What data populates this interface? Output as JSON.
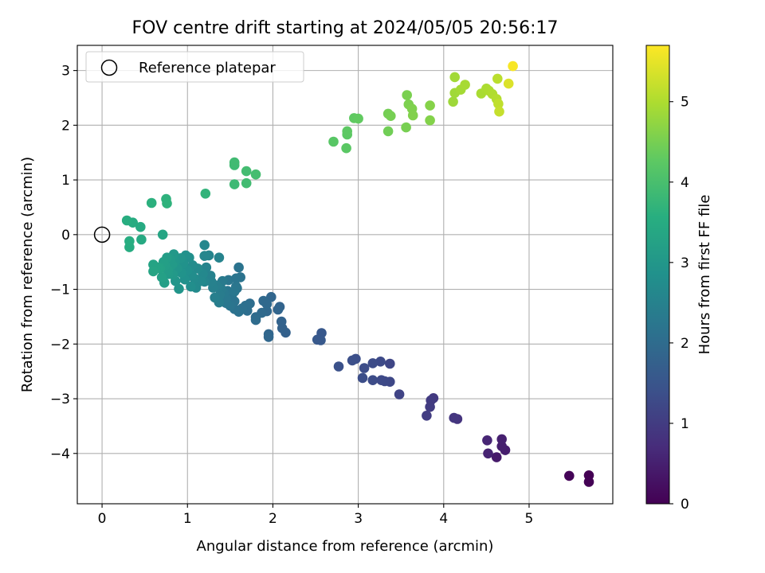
{
  "chart_data": {
    "type": "scatter",
    "title": "FOV centre drift starting at 2024/05/05 20:56:17",
    "xlabel": "Angular distance from reference (arcmin)",
    "ylabel": "Rotation from reference (arcmin)",
    "xlim": [
      -0.29,
      5.98
    ],
    "ylim": [
      -4.92,
      3.46
    ],
    "xticks": [
      0,
      1,
      2,
      3,
      4,
      5
    ],
    "yticks": [
      -4,
      -3,
      -2,
      -1,
      0,
      1,
      2,
      3
    ],
    "grid": true,
    "legend": {
      "position": "top-left",
      "entries": [
        "Reference platepar"
      ]
    },
    "reference_point": {
      "name": "Reference platepar",
      "x": 0,
      "y": 0
    },
    "colorbar": {
      "label": "Hours from first FF file",
      "range": [
        0,
        5.7
      ],
      "ticks": [
        0,
        1,
        2,
        3,
        4,
        5
      ],
      "colormap": "viridis"
    },
    "points": [
      [
        5.7,
        -4.4,
        0.0
      ],
      [
        5.7,
        -4.52,
        0.02
      ],
      [
        5.47,
        -4.41,
        0.05
      ],
      [
        4.62,
        -4.07,
        0.4
      ],
      [
        4.72,
        -3.94,
        0.45
      ],
      [
        4.68,
        -3.87,
        0.48
      ],
      [
        4.68,
        -3.74,
        0.5
      ],
      [
        4.52,
        -4.0,
        0.55
      ],
      [
        4.51,
        -3.76,
        0.6
      ],
      [
        4.16,
        -3.37,
        0.85
      ],
      [
        4.12,
        -3.35,
        0.88
      ],
      [
        3.88,
        -2.99,
        0.95
      ],
      [
        3.85,
        -3.03,
        0.98
      ],
      [
        3.84,
        -3.15,
        1.0
      ],
      [
        3.8,
        -3.31,
        1.02
      ],
      [
        3.48,
        -2.92,
        1.15
      ],
      [
        3.37,
        -2.36,
        1.2
      ],
      [
        3.37,
        -2.69,
        1.22
      ],
      [
        3.31,
        -2.68,
        1.25
      ],
      [
        3.27,
        -2.66,
        1.27
      ],
      [
        3.26,
        -2.32,
        1.28
      ],
      [
        3.17,
        -2.66,
        1.3
      ],
      [
        3.17,
        -2.35,
        1.31
      ],
      [
        3.07,
        -2.44,
        1.33
      ],
      [
        3.05,
        -2.62,
        1.35
      ],
      [
        2.97,
        -2.27,
        1.37
      ],
      [
        2.93,
        -2.3,
        1.38
      ],
      [
        2.77,
        -2.41,
        1.4
      ],
      [
        2.57,
        -1.8,
        1.55
      ],
      [
        2.56,
        -1.93,
        1.57
      ],
      [
        2.52,
        -1.92,
        1.58
      ],
      [
        2.15,
        -1.79,
        1.75
      ],
      [
        2.11,
        -1.71,
        1.78
      ],
      [
        2.1,
        -1.59,
        1.8
      ],
      [
        2.08,
        -1.32,
        1.82
      ],
      [
        2.06,
        -1.37,
        1.84
      ],
      [
        1.98,
        -1.14,
        1.86
      ],
      [
        1.95,
        -1.82,
        1.88
      ],
      [
        1.95,
        -1.87,
        1.9
      ],
      [
        1.93,
        -1.4,
        1.92
      ],
      [
        1.93,
        -1.27,
        1.93
      ],
      [
        1.89,
        -1.21,
        1.94
      ],
      [
        1.87,
        -1.43,
        1.96
      ],
      [
        1.8,
        -1.51,
        1.98
      ],
      [
        1.8,
        -1.56,
        2.0
      ],
      [
        1.73,
        -1.26,
        2.02
      ],
      [
        1.7,
        -1.39,
        2.04
      ],
      [
        1.7,
        -1.3,
        2.06
      ],
      [
        1.68,
        -1.3,
        2.08
      ],
      [
        1.64,
        -1.35,
        2.1
      ],
      [
        1.6,
        -1.41,
        2.12
      ],
      [
        1.55,
        -1.36,
        2.14
      ],
      [
        1.55,
        -1.22,
        2.16
      ],
      [
        1.52,
        -1.1,
        2.18
      ],
      [
        1.5,
        -1.3,
        2.2
      ],
      [
        1.48,
        -0.83,
        2.22
      ],
      [
        1.47,
        -1.03,
        2.24
      ],
      [
        1.45,
        -1.25,
        2.26
      ],
      [
        1.45,
        -1.17,
        2.28
      ],
      [
        1.43,
        -1.07,
        2.3
      ],
      [
        1.41,
        -0.85,
        2.32
      ],
      [
        1.4,
        -1.0,
        2.34
      ],
      [
        1.38,
        -1.1,
        2.36
      ],
      [
        1.37,
        -1.24,
        2.38
      ],
      [
        1.36,
        -0.96,
        2.4
      ],
      [
        1.34,
        -0.93,
        2.42
      ],
      [
        1.32,
        -1.15,
        2.44
      ],
      [
        1.3,
        -0.97,
        2.46
      ],
      [
        1.28,
        -0.86,
        2.48
      ],
      [
        1.27,
        -0.75,
        2.5
      ],
      [
        1.62,
        -0.78,
        2.15
      ],
      [
        1.6,
        -0.6,
        2.17
      ],
      [
        1.58,
        -0.98,
        2.19
      ],
      [
        1.57,
        -0.8,
        2.21
      ],
      [
        1.57,
        -0.95,
        2.23
      ],
      [
        1.55,
        -1.04,
        2.25
      ],
      [
        1.37,
        -0.42,
        2.52
      ],
      [
        1.25,
        -0.38,
        2.54
      ],
      [
        1.22,
        -0.6,
        2.56
      ],
      [
        1.2,
        -0.86,
        2.58
      ],
      [
        1.2,
        -0.39,
        2.6
      ],
      [
        1.2,
        -0.19,
        2.62
      ],
      [
        1.18,
        -0.72,
        2.64
      ],
      [
        1.16,
        -0.85,
        2.66
      ],
      [
        1.12,
        -0.62,
        2.68
      ],
      [
        1.1,
        -0.97,
        2.7
      ],
      [
        1.08,
        -0.8,
        2.72
      ],
      [
        1.06,
        -0.56,
        2.74
      ],
      [
        1.05,
        -0.74,
        2.76
      ],
      [
        1.04,
        -0.95,
        2.78
      ],
      [
        1.02,
        -0.42,
        2.8
      ],
      [
        1.0,
        -0.65,
        2.82
      ],
      [
        0.98,
        -0.38,
        2.84
      ],
      [
        0.97,
        -0.82,
        2.86
      ],
      [
        0.95,
        -0.53,
        2.88
      ],
      [
        0.93,
        -0.7,
        2.9
      ],
      [
        0.92,
        -0.43,
        2.92
      ],
      [
        0.9,
        -0.99,
        2.94
      ],
      [
        0.88,
        -0.62,
        2.96
      ],
      [
        0.86,
        -0.85,
        2.98
      ],
      [
        0.85,
        -0.5,
        3.0
      ],
      [
        0.84,
        -0.36,
        3.02
      ],
      [
        0.83,
        -0.73,
        3.04
      ],
      [
        0.82,
        -0.55,
        3.06
      ],
      [
        0.8,
        -0.45,
        3.08
      ],
      [
        0.78,
        -0.72,
        3.1
      ],
      [
        0.77,
        -0.65,
        3.12
      ],
      [
        0.76,
        -0.42,
        3.14
      ],
      [
        0.74,
        -0.56,
        3.16
      ],
      [
        0.73,
        -0.88,
        3.18
      ],
      [
        0.72,
        -0.5,
        3.2
      ],
      [
        0.7,
        -0.78,
        3.22
      ],
      [
        0.68,
        -0.62,
        3.24
      ],
      [
        0.65,
        -0.6,
        3.26
      ],
      [
        0.63,
        -0.62,
        3.28
      ],
      [
        0.6,
        -0.55,
        3.3
      ],
      [
        0.6,
        -0.67,
        3.32
      ],
      [
        0.71,
        0.0,
        3.35
      ],
      [
        0.46,
        -0.09,
        3.45
      ],
      [
        0.45,
        0.14,
        3.47
      ],
      [
        0.36,
        0.22,
        3.49
      ],
      [
        0.32,
        -0.23,
        3.51
      ],
      [
        0.32,
        -0.12,
        3.53
      ],
      [
        0.29,
        0.26,
        3.55
      ],
      [
        0.58,
        0.58,
        3.62
      ],
      [
        0.75,
        0.65,
        3.64
      ],
      [
        0.76,
        0.57,
        3.66
      ],
      [
        1.21,
        0.75,
        3.7
      ],
      [
        1.55,
        0.92,
        3.85
      ],
      [
        1.55,
        1.27,
        3.87
      ],
      [
        1.55,
        1.32,
        3.89
      ],
      [
        1.69,
        0.94,
        3.91
      ],
      [
        1.69,
        1.16,
        3.93
      ],
      [
        1.8,
        1.1,
        3.95
      ],
      [
        2.71,
        1.7,
        4.2
      ],
      [
        2.86,
        1.58,
        4.22
      ],
      [
        2.87,
        1.83,
        4.24
      ],
      [
        2.87,
        1.89,
        4.26
      ],
      [
        2.95,
        2.13,
        4.28
      ],
      [
        3.0,
        2.12,
        4.3
      ],
      [
        3.35,
        1.89,
        4.45
      ],
      [
        3.35,
        2.21,
        4.47
      ],
      [
        3.38,
        2.17,
        4.49
      ],
      [
        3.56,
        1.96,
        4.51
      ],
      [
        3.57,
        2.55,
        4.53
      ],
      [
        3.59,
        2.38,
        4.55
      ],
      [
        3.63,
        2.3,
        4.57
      ],
      [
        3.64,
        2.18,
        4.59
      ],
      [
        3.84,
        2.09,
        4.61
      ],
      [
        3.84,
        2.36,
        4.63
      ],
      [
        4.11,
        2.43,
        4.85
      ],
      [
        4.13,
        2.59,
        4.87
      ],
      [
        4.13,
        2.88,
        4.89
      ],
      [
        4.2,
        2.65,
        4.91
      ],
      [
        4.25,
        2.74,
        4.93
      ],
      [
        4.44,
        2.58,
        4.95
      ],
      [
        4.5,
        2.67,
        4.97
      ],
      [
        4.53,
        2.63,
        4.99
      ],
      [
        4.57,
        2.57,
        5.01
      ],
      [
        4.62,
        2.48,
        5.05
      ],
      [
        4.63,
        2.85,
        5.1
      ],
      [
        4.64,
        2.39,
        5.15
      ],
      [
        4.65,
        2.25,
        5.2
      ],
      [
        4.76,
        2.76,
        5.4
      ],
      [
        4.81,
        3.08,
        5.65
      ]
    ]
  }
}
